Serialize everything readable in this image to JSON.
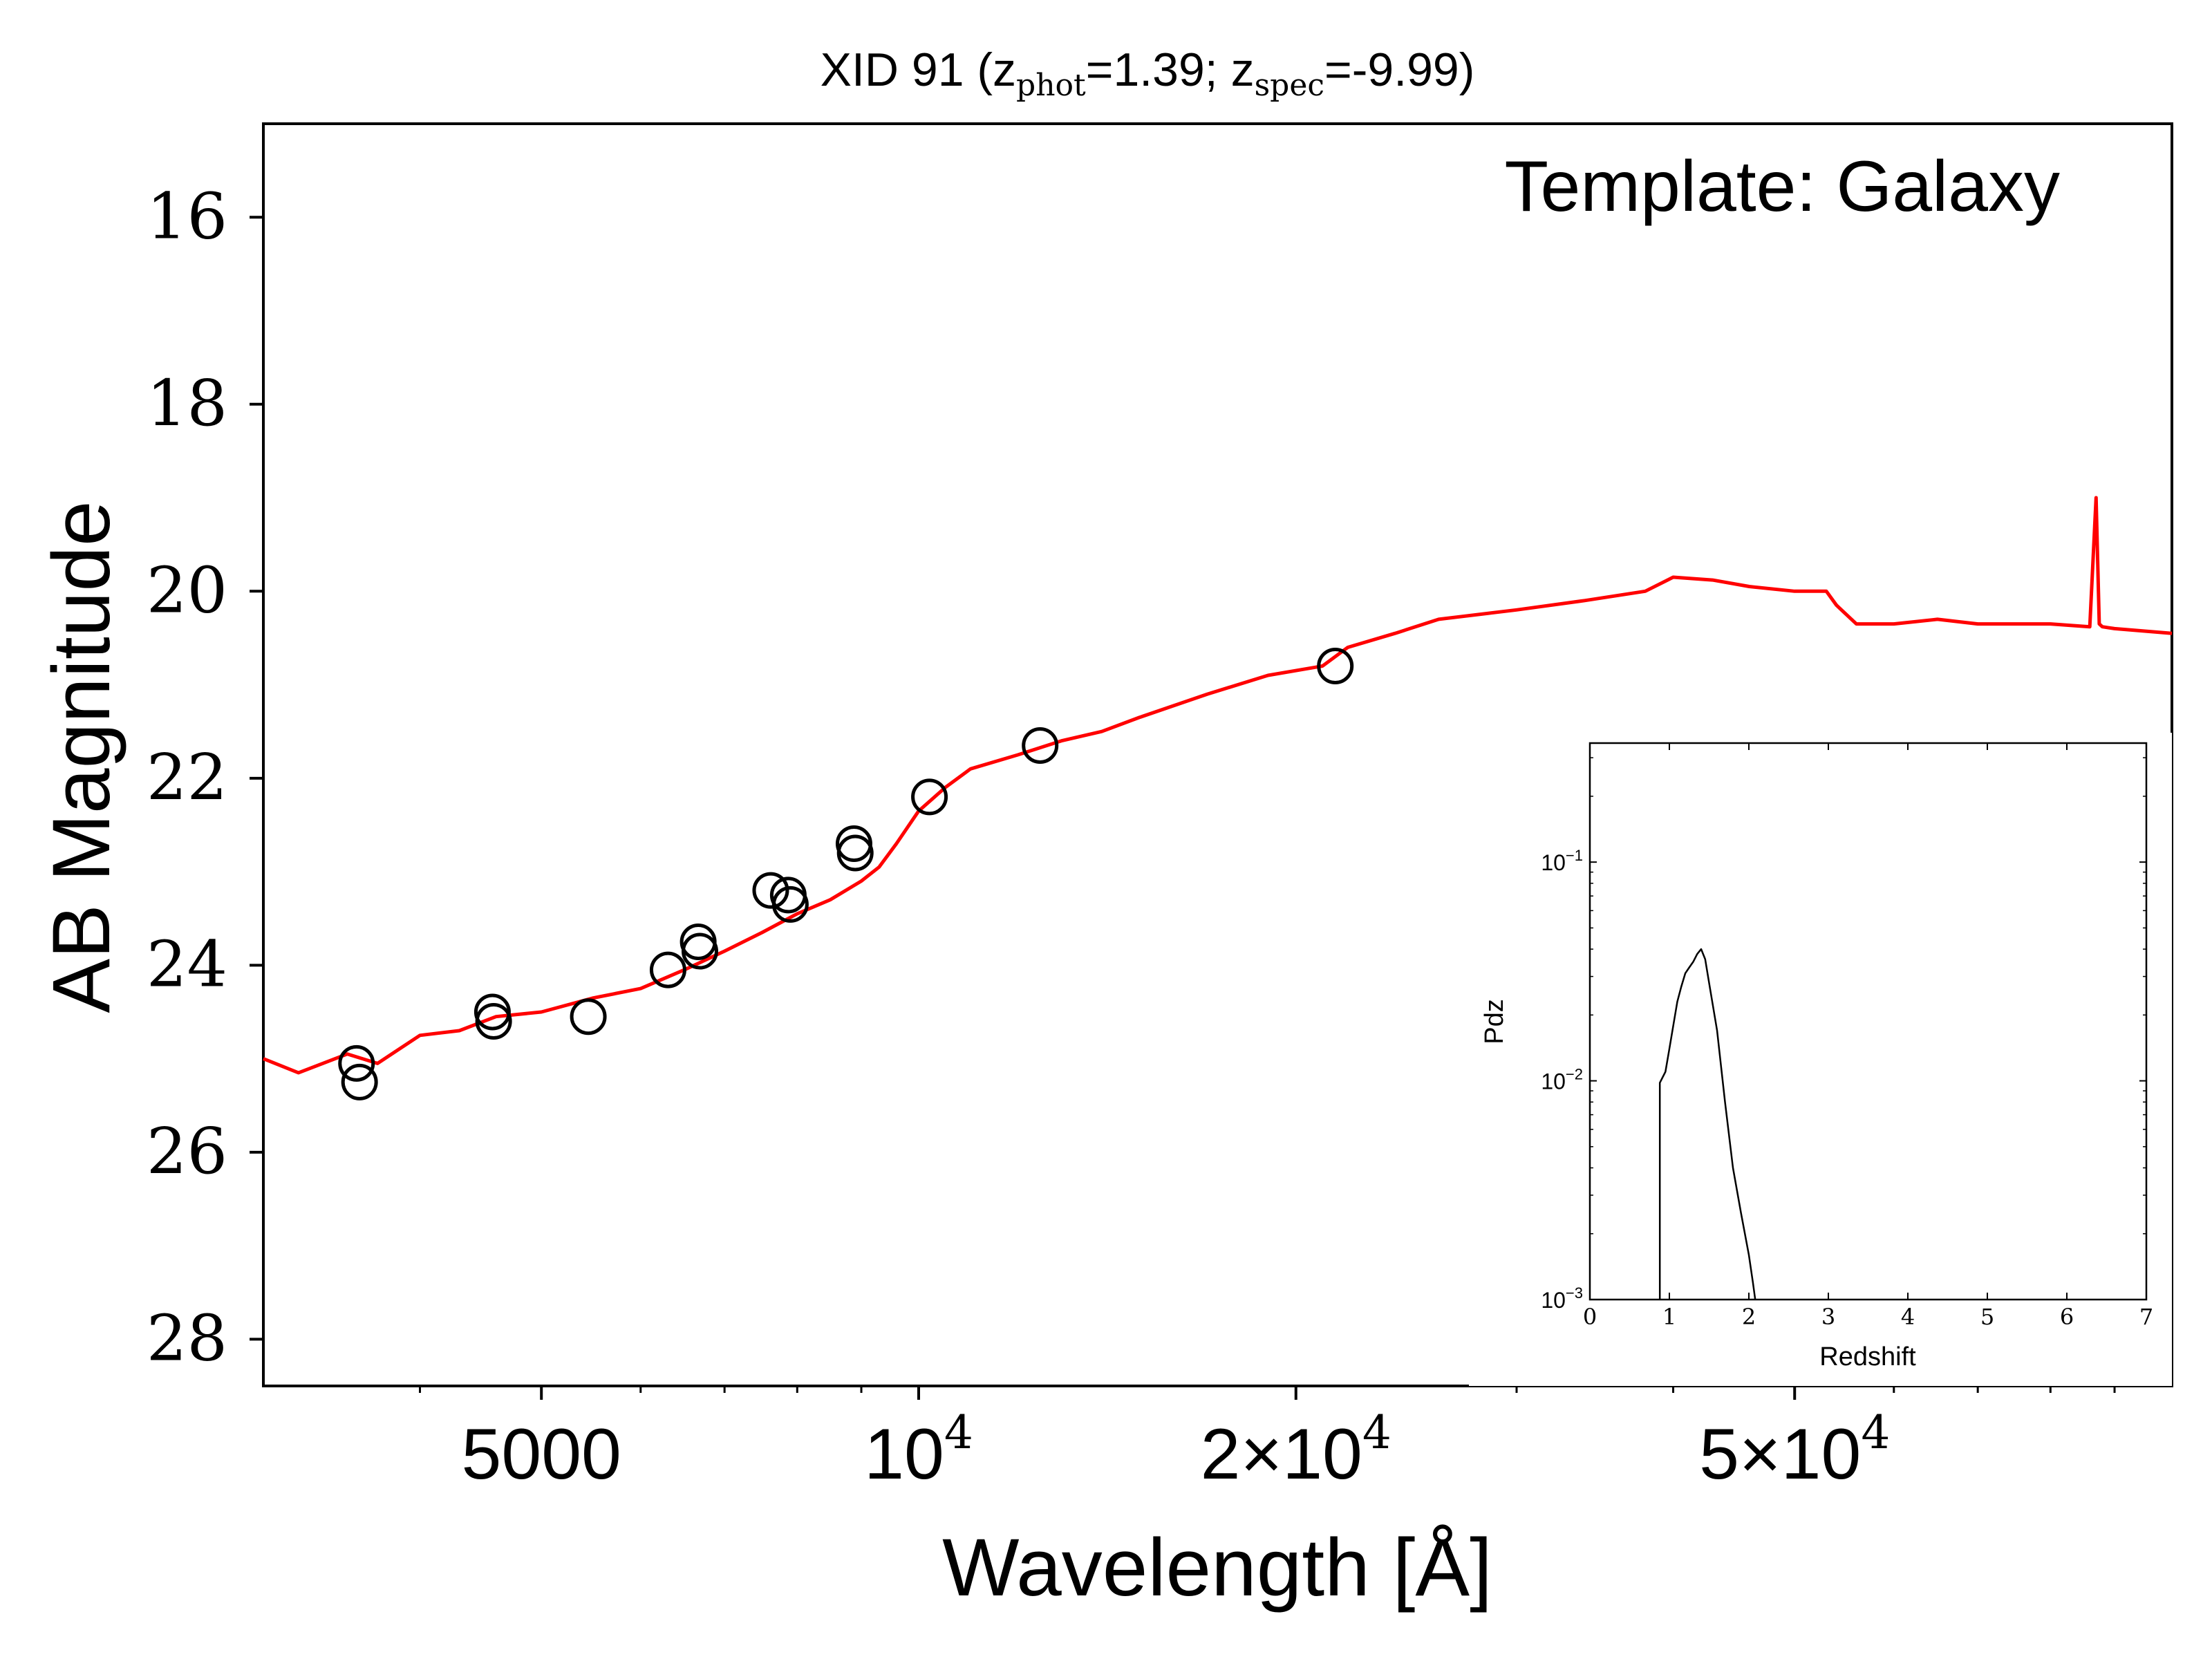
{
  "title": {
    "prefix": "XID 91 (z",
    "sub1": "phot",
    "mid": "=1.39; z",
    "sub2": "spec",
    "suffix": "=-9.99)"
  },
  "chart_data": [
    {
      "type": "line",
      "annotation": "Template: Galaxy",
      "xlabel": "Wavelength [Å]",
      "ylabel": "AB Magnitude",
      "xscale": "log",
      "xlim": [
        3000,
        100000
      ],
      "ylim": [
        28.5,
        15
      ],
      "y_inverted": true,
      "yticks": [
        16,
        18,
        20,
        22,
        24,
        26,
        28
      ],
      "ytick_labels": [
        "16",
        "18",
        "20",
        "22",
        "24",
        "26",
        "28"
      ],
      "xticks": [
        {
          "value": 5000,
          "mantissa": "5000",
          "exponent": ""
        },
        {
          "value": 10000,
          "mantissa": "10",
          "exponent": "4"
        },
        {
          "value": 20000,
          "mantissa": "2×10",
          "exponent": "4"
        },
        {
          "value": 50000,
          "mantissa": "5×10",
          "exponent": "4"
        }
      ],
      "grid": false,
      "colors": {
        "template": "#ff0000",
        "photometry": "#000000"
      },
      "series": [
        {
          "role": "template",
          "x": [
            3000,
            3200,
            3500,
            3700,
            4000,
            4300,
            4600,
            5000,
            5500,
            6000,
            6500,
            7000,
            7500,
            8000,
            8500,
            9000,
            9300,
            9600,
            10000,
            10500,
            11000,
            12000,
            13000,
            14000,
            15000,
            17000,
            19000,
            21000,
            22000,
            24000,
            26000,
            30000,
            34000,
            38000,
            40000,
            43000,
            46000,
            50000,
            53000,
            54000,
            56000,
            60000,
            65000,
            70000,
            80000,
            86000,
            87000,
            87500,
            88000,
            90000,
            100000
          ],
          "y": [
            25.0,
            25.15,
            24.95,
            25.05,
            24.75,
            24.7,
            24.55,
            24.5,
            24.35,
            24.25,
            24.05,
            23.85,
            23.65,
            23.45,
            23.3,
            23.1,
            22.95,
            22.7,
            22.35,
            22.1,
            21.9,
            21.75,
            21.6,
            21.5,
            21.35,
            21.1,
            20.9,
            20.8,
            20.6,
            20.45,
            20.3,
            20.2,
            20.1,
            20.0,
            19.85,
            19.88,
            19.95,
            20.0,
            20.0,
            20.15,
            20.35,
            20.35,
            20.3,
            20.35,
            20.35,
            20.38,
            19.0,
            20.35,
            20.38,
            20.4,
            20.45
          ]
        },
        {
          "role": "photometry",
          "marker": "open-circle",
          "x": [
            3560,
            3580,
            4570,
            4580,
            5450,
            6310,
            6670,
            6690,
            7620,
            7870,
            7900,
            8880,
            8900,
            10200,
            12500,
            21500
          ],
          "y": [
            25.05,
            25.25,
            24.5,
            24.6,
            24.55,
            24.05,
            23.75,
            23.85,
            23.2,
            23.25,
            23.35,
            22.7,
            22.8,
            22.2,
            21.65,
            20.8
          ]
        }
      ]
    },
    {
      "type": "line",
      "xlabel": "Redshift",
      "ylabel": "Pdz",
      "xscale": "linear",
      "yscale": "log",
      "xlim": [
        0,
        7
      ],
      "ylim": [
        0.001,
        0.35
      ],
      "xticks": [
        "0",
        "1",
        "2",
        "3",
        "4",
        "5",
        "6",
        "7"
      ],
      "yticks": [
        {
          "value": 0.1,
          "base": "10",
          "exponent": "−1"
        },
        {
          "value": 0.01,
          "base": "10",
          "exponent": "−2"
        },
        {
          "value": 0.001,
          "base": "10",
          "exponent": "−3"
        }
      ],
      "colors": {
        "line": "#000000"
      },
      "series": [
        {
          "x": [
            0.88,
            0.88,
            0.95,
            1.0,
            1.05,
            1.1,
            1.15,
            1.2,
            1.25,
            1.3,
            1.35,
            1.4,
            1.45,
            1.5,
            1.6,
            1.7,
            1.8,
            1.9,
            2.0,
            2.05,
            2.08
          ],
          "y": [
            0.001,
            0.0098,
            0.011,
            0.014,
            0.018,
            0.023,
            0.027,
            0.031,
            0.033,
            0.035,
            0.038,
            0.04,
            0.036,
            0.028,
            0.017,
            0.008,
            0.004,
            0.0025,
            0.0016,
            0.0012,
            0.001
          ]
        }
      ]
    }
  ]
}
